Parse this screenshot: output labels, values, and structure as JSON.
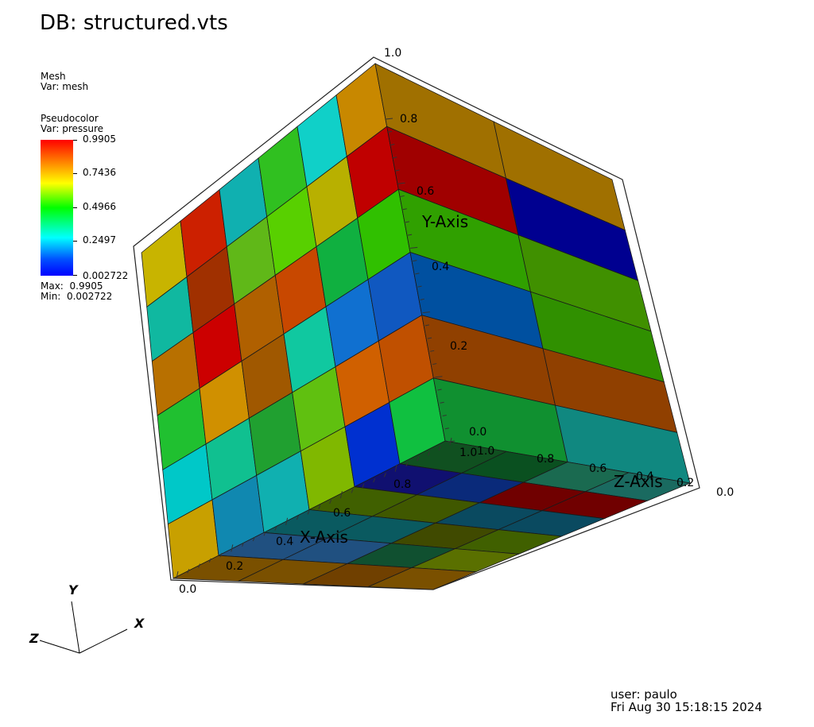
{
  "title": "DB: structured.vts",
  "mesh_legend": {
    "name": "Mesh",
    "var": "Var: mesh"
  },
  "pseudocolor_legend": {
    "name": "Pseudocolor",
    "var": "Var: pressure",
    "ticks": [
      "0.9905",
      "0.7436",
      "0.4966",
      "0.2497",
      "0.002722"
    ],
    "max_label": "Max:",
    "max_value": "0.9905",
    "min_label": "Min:",
    "min_value": "0.002722",
    "colors": [
      "#ff0000",
      "#ffa000",
      "#ffff00",
      "#00ff00",
      "#00ffff",
      "#0050ff",
      "#0000ff"
    ]
  },
  "axes": {
    "x_title": "X-Axis",
    "y_title": "Y-Axis",
    "z_title": "Z-Axis",
    "x_ticks": [
      "0.0",
      "0.2",
      "0.4",
      "0.6",
      "0.8",
      "1.0"
    ],
    "y_ticks": [
      "0.0",
      "0.2",
      "0.4",
      "0.6",
      "0.8",
      "1.0"
    ],
    "z_ticks": [
      "1.0",
      "0.8",
      "0.6",
      "0.4",
      "0.2",
      "0.0"
    ]
  },
  "triad": {
    "x": "X",
    "y": "Y",
    "z": "Z"
  },
  "user_info": {
    "user": "user: paulo",
    "timestamp": "Fri Aug 30 15:18:15 2024"
  }
}
